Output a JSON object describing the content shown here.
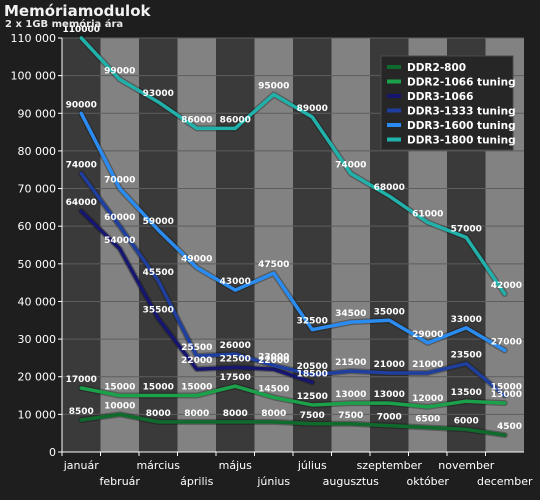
{
  "chart_data": {
    "type": "line",
    "title": "Memóriamodulok",
    "subtitle": "2 x 1GB memória ára",
    "categories": [
      "január",
      "február",
      "március",
      "április",
      "május",
      "június",
      "július",
      "augusztus",
      "szeptember",
      "október",
      "november",
      "december"
    ],
    "ylim": [
      0,
      110000
    ],
    "yticks": [
      "0",
      "10 000",
      "20 000",
      "30 000",
      "40 000",
      "50 000",
      "60 000",
      "70 000",
      "80 000",
      "90 000",
      "100 000",
      "110 000"
    ],
    "grid": true,
    "legend_position": "top-right",
    "series": [
      {
        "name": "DDR2-800",
        "color": "#0f6b2c",
        "values": [
          8500,
          10000,
          8000,
          8000,
          8000,
          8000,
          7500,
          7500,
          7000,
          6500,
          6000,
          4500
        ],
        "labels": [
          "8500",
          "10000",
          "8000",
          "8000",
          "8000",
          "8000",
          "7500",
          "7500",
          "7000",
          "6500",
          "6000",
          "4500"
        ]
      },
      {
        "name": "DDR2-1066 tuning",
        "color": "#1ba14a",
        "values": [
          17000,
          15000,
          15000,
          15000,
          17500,
          14500,
          12500,
          13000,
          13000,
          12000,
          13500,
          13000
        ],
        "labels": [
          "17000",
          "15000",
          "15000",
          "15000",
          "17500",
          "14500",
          "12500",
          "13000",
          "13000",
          "12000",
          "13500",
          "13000"
        ]
      },
      {
        "name": "DDR3-1066",
        "color": "#16166e",
        "values": [
          64000,
          54000,
          35500,
          22000,
          22500,
          22000,
          18500,
          null,
          null,
          null,
          null,
          null
        ],
        "labels": [
          "64000",
          "54000",
          "35500",
          "22000",
          "22500",
          "22000",
          "18500",
          "",
          "",
          "",
          "",
          ""
        ]
      },
      {
        "name": "DDR3-1333 tuning",
        "color": "#1f3f9e",
        "values": [
          74000,
          60000,
          45500,
          25500,
          26000,
          23000,
          20500,
          21500,
          21000,
          21000,
          23500,
          15000
        ],
        "labels": [
          "74000",
          "60000",
          "45500",
          "25500",
          "26000",
          "23000",
          "20500",
          "21500",
          "21000",
          "21000",
          "23500",
          "15000"
        ]
      },
      {
        "name": "DDR3-1600 tuning",
        "color": "#2a8cf0",
        "values": [
          90000,
          70000,
          59000,
          49000,
          43000,
          47500,
          32500,
          34500,
          35000,
          29000,
          33000,
          27000
        ],
        "labels": [
          "90000",
          "70000",
          "59000",
          "49000",
          "43000",
          "47500",
          "32500",
          "34500",
          "35000",
          "29000",
          "33000",
          "27000"
        ]
      },
      {
        "name": "DDR3-1800 tuning",
        "color": "#20b2aa",
        "values": [
          110000,
          99000,
          93000,
          86000,
          86000,
          95000,
          89000,
          74000,
          68000,
          61000,
          57000,
          42000
        ],
        "labels": [
          "110000",
          "99000",
          "93000",
          "86000",
          "86000",
          "95000",
          "89000",
          "74000",
          "68000",
          "61000",
          "57000",
          "42000"
        ]
      }
    ]
  }
}
